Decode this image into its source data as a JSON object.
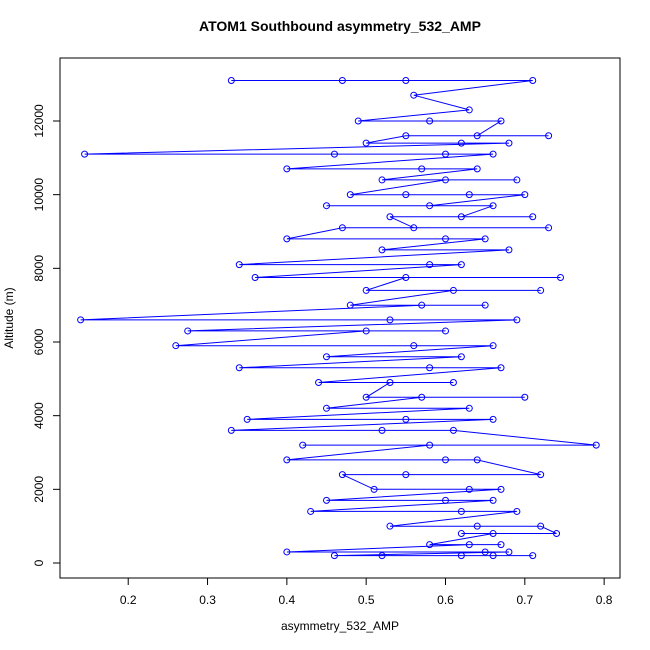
{
  "chart_data": {
    "type": "line",
    "title": "ATOM1 Southbound asymmetry_532_AMP",
    "xlabel": "asymmetry_532_AMP",
    "ylabel": "Altitude (m)",
    "color": "#0000ff",
    "xlim": [
      0.114,
      0.82
    ],
    "ylim": [
      -407,
      13710
    ],
    "xticks": [
      0.2,
      0.3,
      0.4,
      0.5,
      0.6,
      0.7,
      0.8
    ],
    "yticks": [
      0,
      2000,
      4000,
      6000,
      8000,
      10000,
      12000
    ],
    "x": [
      0.33,
      0.47,
      0.55,
      0.71,
      0.56,
      0.63,
      0.49,
      0.58,
      0.67,
      0.64,
      0.73,
      0.55,
      0.5,
      0.62,
      0.68,
      0.145,
      0.46,
      0.6,
      0.66,
      0.4,
      0.57,
      0.64,
      0.52,
      0.69,
      0.6,
      0.48,
      0.63,
      0.55,
      0.7,
      0.58,
      0.45,
      0.66,
      0.62,
      0.71,
      0.53,
      0.56,
      0.73,
      0.47,
      0.4,
      0.6,
      0.65,
      0.52,
      0.68,
      0.34,
      0.58,
      0.62,
      0.36,
      0.745,
      0.55,
      0.5,
      0.72,
      0.61,
      0.48,
      0.65,
      0.57,
      0.14,
      0.53,
      0.69,
      0.275,
      0.6,
      0.5,
      0.26,
      0.56,
      0.66,
      0.45,
      0.62,
      0.34,
      0.58,
      0.67,
      0.44,
      0.61,
      0.53,
      0.5,
      0.7,
      0.57,
      0.45,
      0.63,
      0.35,
      0.55,
      0.66,
      0.33,
      0.52,
      0.61,
      0.79,
      0.42,
      0.58,
      0.4,
      0.6,
      0.64,
      0.72,
      0.55,
      0.47,
      0.51,
      0.63,
      0.67,
      0.45,
      0.6,
      0.66,
      0.43,
      0.62,
      0.69,
      0.53,
      0.64,
      0.72,
      0.74,
      0.62,
      0.66,
      0.58,
      0.67,
      0.63,
      0.4,
      0.65,
      0.68,
      0.46,
      0.52,
      0.62,
      0.66,
      0.71
    ],
    "values": [
      13100,
      13100,
      13100,
      13100,
      12700,
      12300,
      12000,
      12000,
      12000,
      11600,
      11600,
      11600,
      11400,
      11400,
      11400,
      11100,
      11100,
      11100,
      11100,
      10700,
      10700,
      10700,
      10400,
      10400,
      10400,
      10000,
      10000,
      10000,
      10000,
      9700,
      9700,
      9700,
      9400,
      9400,
      9400,
      9100,
      9100,
      9100,
      8800,
      8800,
      8800,
      8500,
      8500,
      8100,
      8100,
      8100,
      7750,
      7750,
      7750,
      7400,
      7400,
      7400,
      7000,
      7000,
      7000,
      6600,
      6600,
      6600,
      6300,
      6300,
      6300,
      5900,
      5900,
      5900,
      5600,
      5600,
      5300,
      5300,
      5300,
      4900,
      4900,
      4900,
      4500,
      4500,
      4500,
      4200,
      4200,
      3900,
      3900,
      3900,
      3600,
      3600,
      3600,
      3200,
      3200,
      3200,
      2800,
      2800,
      2800,
      2400,
      2400,
      2400,
      2000,
      2000,
      2000,
      1700,
      1700,
      1700,
      1400,
      1400,
      1400,
      1000,
      1000,
      1000,
      800,
      800,
      800,
      500,
      500,
      500,
      300,
      300,
      300,
      200,
      200,
      200,
      200,
      200
    ]
  }
}
